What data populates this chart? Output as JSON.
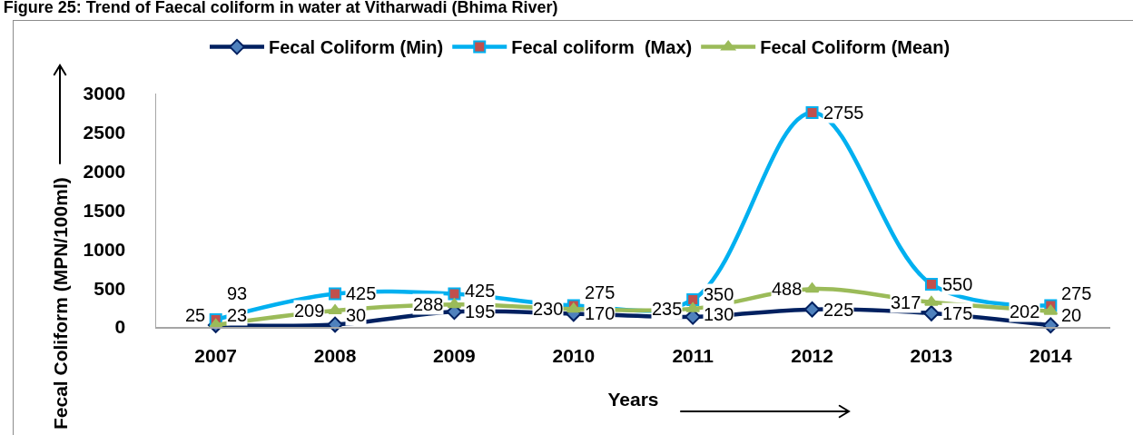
{
  "chart_data": {
    "type": "line",
    "title": "Figure 25: Trend of Faecal coliform in water at Vitharwadi (Bhima River)",
    "xlabel": "Years",
    "ylabel": "Fecal Coliform (MPN/100ml)",
    "categories": [
      "2007",
      "2008",
      "2009",
      "2010",
      "2011",
      "2012",
      "2013",
      "2014"
    ],
    "ylim": [
      0,
      3000
    ],
    "yticks": [
      0,
      500,
      1000,
      1500,
      2000,
      2500,
      3000
    ],
    "grid": false,
    "legend": "top",
    "data_labels": true,
    "series": [
      {
        "name": "Fecal Coliform (Min)",
        "color": "#002060",
        "colors": [
          "#4f81bd",
          "#4f81bd",
          "#4f81bd",
          "#4f81bd",
          "#4f81bd",
          "#4f81bd",
          "#4f81bd",
          "#4f81bd"
        ],
        "marker": "diamond",
        "values": [
          23,
          30,
          195,
          170,
          130,
          225,
          175,
          20
        ]
      },
      {
        "name": "Fecal coliform  (Max)",
        "color": "#00b0f0",
        "colors": [
          "#c0504d",
          "#c0504d",
          "#c0504d",
          "#c0504d",
          "#c0504d",
          "#c0504d",
          "#c0504d",
          "#c0504d"
        ],
        "marker": "square",
        "values": [
          93,
          425,
          425,
          275,
          350,
          2755,
          550,
          275
        ]
      },
      {
        "name": "Fecal Coliform (Mean)",
        "color": "#9bbb59",
        "marker": "triangle",
        "values": [
          25,
          209,
          288,
          230,
          235,
          488,
          317,
          202
        ]
      }
    ]
  }
}
